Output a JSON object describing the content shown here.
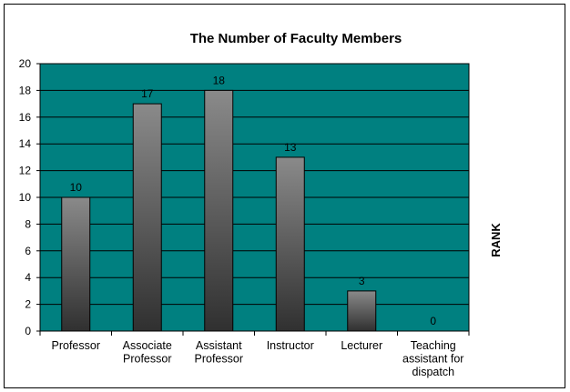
{
  "chart_data": {
    "type": "bar",
    "title": "The Number of Faculty Members",
    "categories": [
      [
        "Professor"
      ],
      [
        "Associate",
        "Professor"
      ],
      [
        "Assistant",
        "Professor"
      ],
      [
        "Instructor"
      ],
      [
        "Lecturer"
      ],
      [
        "Teaching",
        "assistant for",
        "dispatch"
      ]
    ],
    "values": [
      10,
      17,
      18,
      13,
      3,
      0
    ],
    "ylim": [
      0,
      20
    ],
    "ytick_step": 2,
    "side_label": "RANK",
    "plot_background": "#008080",
    "bar_gradient": [
      "#8a8a8a",
      "#303030"
    ],
    "gridlines": true,
    "legend": "none"
  }
}
